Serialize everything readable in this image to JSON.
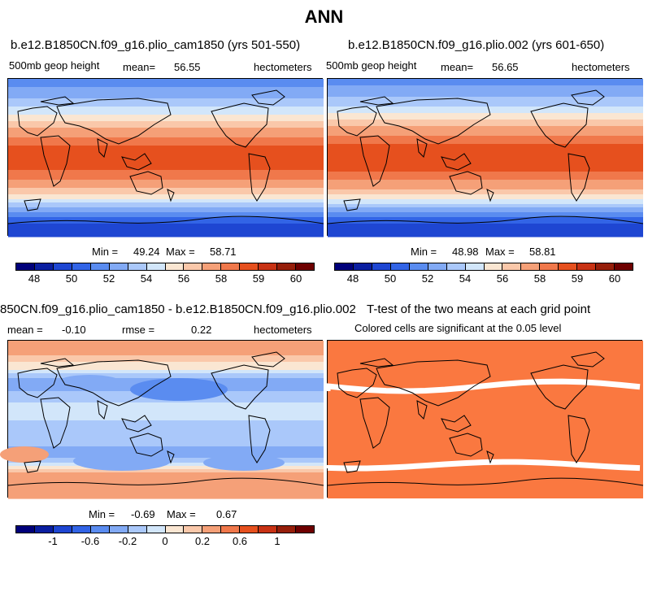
{
  "page_title": "ANN",
  "colors": {
    "base_scale": [
      "#00007a",
      "#0a1ea0",
      "#1e46d2",
      "#3264e6",
      "#5a8cf0",
      "#82aaf5",
      "#aac8fa",
      "#d2e6fa",
      "#fae6d2",
      "#fac8aa",
      "#f5a078",
      "#f0784b",
      "#e6501e",
      "#c83214",
      "#961e0a",
      "#6e0000"
    ],
    "diff_scale": [
      "#00007a",
      "#0a1ea0",
      "#1e46d2",
      "#3264e6",
      "#5a8cf0",
      "#82aaf5",
      "#aac8fa",
      "#d2e6fa",
      "#fae6d2",
      "#fac8aa",
      "#f5a078",
      "#f0784b",
      "#e6501e",
      "#c83214",
      "#961e0a",
      "#6e0000"
    ],
    "significance": "#fa7840"
  },
  "panel1": {
    "title": "b.e12.B1850CN.f09_g16.plio_cam1850 (yrs 501-550)",
    "variable": "500mb geop height",
    "mean_label": "mean=",
    "mean_value": "56.55",
    "units": "hectometers",
    "min_label": "Min =",
    "min_value": "49.24",
    "max_label": "Max =",
    "max_value": "58.71"
  },
  "panel2": {
    "title": "b.e12.B1850CN.f09_g16.plio.002 (yrs 601-650)",
    "variable": "500mb geop height",
    "mean_label": "mean=",
    "mean_value": "56.65",
    "units": "hectometers",
    "min_label": "Min =",
    "min_value": "48.98",
    "max_label": "Max =",
    "max_value": "58.81"
  },
  "panel3": {
    "title": "850CN.f09_g16.plio_cam1850 - b.e12.B1850CN.f09_g16.plio.002",
    "mean_label": "mean =",
    "mean_value": "-0.10",
    "rmse_label": "rmse =",
    "rmse_value": "0.22",
    "units": "hectometers",
    "min_label": "Min =",
    "min_value": "-0.69",
    "max_label": "Max =",
    "max_value": "0.67"
  },
  "panel4": {
    "title": "T-test of the two means at each grid point",
    "subtitle": "Colored cells are significant at the 0.05 level"
  },
  "chart_data": [
    {
      "type": "heatmap",
      "title": "b.e12.B1850CN.f09_g16.plio_cam1850 (yrs 501-550)",
      "colorbar_ticks": [
        "48",
        "50",
        "52",
        "54",
        "56",
        "58",
        "59",
        "60"
      ],
      "mean": 56.55,
      "min": 49.24,
      "max": 58.71,
      "zonal_profile": {
        "latitude": [
          90,
          80,
          70,
          60,
          50,
          40,
          30,
          20,
          10,
          0,
          -10,
          -20,
          -30,
          -40,
          -50,
          -60,
          -70,
          -80,
          -90
        ],
        "value": [
          51.5,
          52.0,
          52.8,
          53.8,
          55.0,
          56.3,
          57.5,
          58.3,
          58.6,
          58.7,
          58.6,
          58.3,
          57.6,
          56.3,
          54.3,
          52.4,
          50.6,
          49.6,
          49.3
        ]
      }
    },
    {
      "type": "heatmap",
      "title": "b.e12.B1850CN.f09_g16.plio.002 (yrs 601-650)",
      "colorbar_ticks": [
        "48",
        "50",
        "52",
        "54",
        "56",
        "58",
        "59",
        "60"
      ],
      "mean": 56.65,
      "min": 48.98,
      "max": 58.81,
      "zonal_profile": {
        "latitude": [
          90,
          80,
          70,
          60,
          50,
          40,
          30,
          20,
          10,
          0,
          -10,
          -20,
          -30,
          -40,
          -50,
          -60,
          -70,
          -80,
          -90
        ],
        "value": [
          51.6,
          52.1,
          52.9,
          53.9,
          55.2,
          56.5,
          57.7,
          58.4,
          58.7,
          58.8,
          58.7,
          58.4,
          57.7,
          56.4,
          54.4,
          52.4,
          50.5,
          49.4,
          49.0
        ]
      }
    },
    {
      "type": "heatmap",
      "title": "850CN.f09_g16.plio_cam1850 - b.e12.B1850CN.f09_g16.plio.002",
      "colorbar_ticks": [
        "-1",
        "-0.6",
        "-0.2",
        "0",
        "0.2",
        "0.6",
        "1"
      ],
      "mean": -0.1,
      "rmse": 0.22,
      "min": -0.69,
      "max": 0.67,
      "zonal_profile": {
        "latitude": [
          90,
          80,
          70,
          60,
          50,
          40,
          30,
          20,
          10,
          0,
          -10,
          -20,
          -30,
          -40,
          -50,
          -60,
          -70,
          -80,
          -90
        ],
        "value": [
          0.35,
          0.3,
          0.15,
          0.05,
          -0.15,
          -0.35,
          -0.15,
          -0.1,
          -0.1,
          -0.1,
          -0.15,
          -0.2,
          -0.2,
          -0.25,
          -0.1,
          0.2,
          0.4,
          0.3,
          0.25
        ]
      }
    },
    {
      "type": "heatmap",
      "title": "T-test of the two means at each grid point",
      "note": "Colored cells are significant at the 0.05 level",
      "nonsignificant_latitudes": [
        38,
        -52
      ]
    }
  ]
}
